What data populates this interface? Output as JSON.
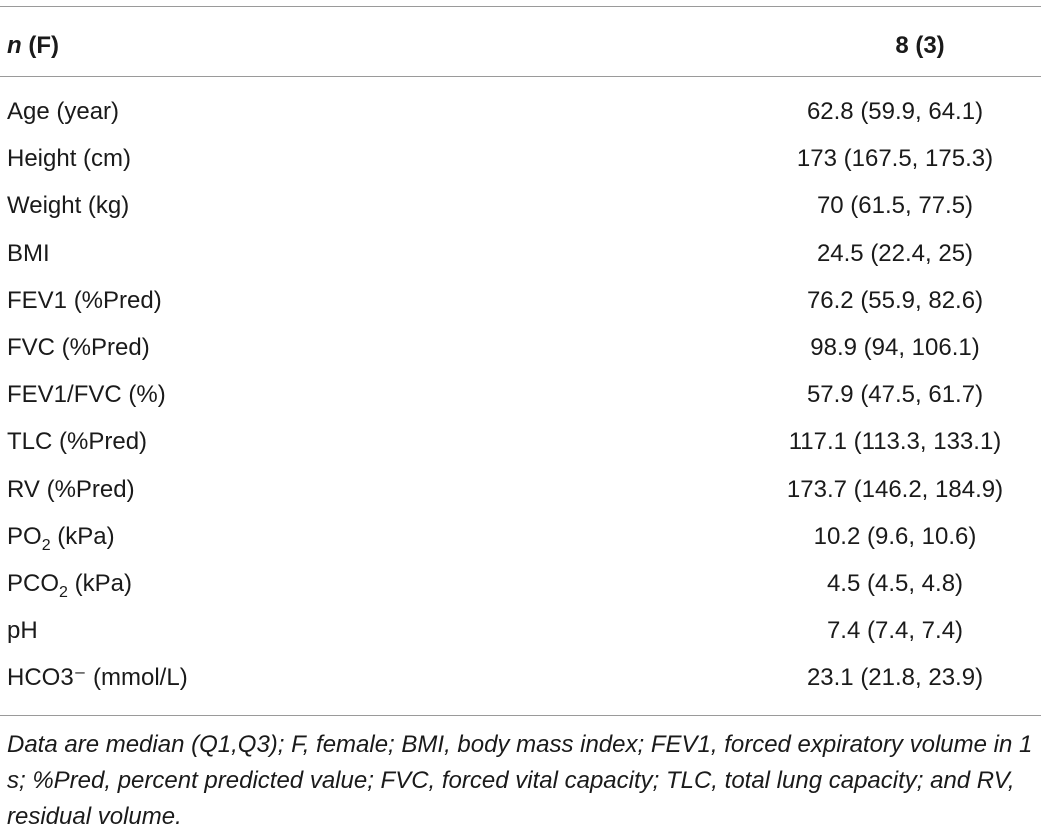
{
  "table": {
    "header": {
      "n_label": "n",
      "f_label": "(F)",
      "value": "8 (3)"
    },
    "rows": [
      {
        "label_main": "Age (year)",
        "label_sub": "",
        "label_after": "",
        "value": "62.8 (59.9, 64.1)"
      },
      {
        "label_main": "Height (cm)",
        "label_sub": "",
        "label_after": "",
        "value": "173 (167.5, 175.3)"
      },
      {
        "label_main": "Weight (kg)",
        "label_sub": "",
        "label_after": "",
        "value": "70 (61.5, 77.5)"
      },
      {
        "label_main": "BMI",
        "label_sub": "",
        "label_after": "",
        "value": "24.5 (22.4, 25)"
      },
      {
        "label_main": "FEV1 (%Pred)",
        "label_sub": "",
        "label_after": "",
        "value": "76.2 (55.9, 82.6)"
      },
      {
        "label_main": "FVC (%Pred)",
        "label_sub": "",
        "label_after": "",
        "value": "98.9 (94, 106.1)"
      },
      {
        "label_main": "FEV1/FVC (%)",
        "label_sub": "",
        "label_after": "",
        "value": "57.9 (47.5, 61.7)"
      },
      {
        "label_main": "TLC (%Pred)",
        "label_sub": "",
        "label_after": "",
        "value": "117.1 (113.3, 133.1)"
      },
      {
        "label_main": "RV (%Pred)",
        "label_sub": "",
        "label_after": "",
        "value": "173.7 (146.2, 184.9)"
      },
      {
        "label_main": "PO",
        "label_sub": "2",
        "label_after": " (kPa)",
        "value": "10.2 (9.6, 10.6)"
      },
      {
        "label_main": "PCO",
        "label_sub": "2",
        "label_after": " (kPa)",
        "value": "4.5 (4.5, 4.8)"
      },
      {
        "label_main": "pH",
        "label_sub": "",
        "label_after": "",
        "value": "7.4 (7.4, 7.4)"
      },
      {
        "label_main": "HCO3⁻ (mmol/L)",
        "label_sub": "",
        "label_after": "",
        "value": "23.1 (21.8, 23.9)"
      }
    ],
    "footnote": "Data are median (Q1,Q3); F, female; BMI, body mass index; FEV1, forced expiratory volume in 1 s; %Pred, percent predicted value; FVC, forced vital capacity; TLC, total lung capacity; and RV, residual volume."
  }
}
